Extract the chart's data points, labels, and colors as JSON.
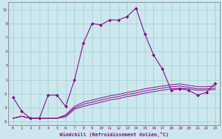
{
  "xlabel": "Windchill (Refroidissement éolien,°C)",
  "ylabel": "",
  "bg_color": "#cce8ee",
  "line_color": "#880088",
  "grid_color": "#99cccc",
  "xlim": [
    -0.5,
    23.5
  ],
  "ylim": [
    -5.5,
    12.0
  ],
  "yticks": [
    -5,
    -3,
    -1,
    1,
    3,
    5,
    7,
    9,
    11
  ],
  "xticks": [
    0,
    1,
    2,
    3,
    4,
    5,
    6,
    7,
    8,
    9,
    10,
    11,
    12,
    13,
    14,
    15,
    16,
    17,
    18,
    19,
    20,
    21,
    22,
    23
  ],
  "hours": [
    0,
    1,
    2,
    3,
    4,
    5,
    6,
    7,
    8,
    9,
    10,
    11,
    12,
    13,
    14,
    15,
    16,
    17,
    18,
    19,
    20,
    21,
    22,
    23
  ],
  "main_line": [
    -1.5,
    -3.5,
    -4.5,
    -4.5,
    -1.2,
    -1.2,
    -2.8,
    1.0,
    6.2,
    9.0,
    8.8,
    9.5,
    9.5,
    10.0,
    11.2,
    7.5,
    4.5,
    2.5,
    -0.5,
    -0.3,
    -0.5,
    -1.2,
    -0.8,
    0.5
  ],
  "line2": [
    -4.5,
    -4.2,
    -4.5,
    -4.5,
    -4.5,
    -4.5,
    -4.3,
    -3.2,
    -2.8,
    -2.5,
    -2.2,
    -1.9,
    -1.7,
    -1.4,
    -1.2,
    -0.9,
    -0.7,
    -0.5,
    -0.3,
    -0.2,
    -0.3,
    -0.5,
    -0.5,
    -0.4
  ],
  "line3": [
    -4.5,
    -4.2,
    -4.5,
    -4.5,
    -4.5,
    -4.5,
    -4.1,
    -3.0,
    -2.5,
    -2.2,
    -1.9,
    -1.6,
    -1.4,
    -1.1,
    -0.9,
    -0.6,
    -0.4,
    -0.2,
    -0.0,
    0.1,
    -0.1,
    -0.3,
    -0.3,
    -0.2
  ],
  "line4": [
    -4.5,
    -4.2,
    -4.5,
    -4.5,
    -4.5,
    -4.5,
    -4.0,
    -2.8,
    -2.2,
    -1.9,
    -1.6,
    -1.3,
    -1.1,
    -0.8,
    -0.6,
    -0.3,
    -0.1,
    0.1,
    0.3,
    0.4,
    0.2,
    0.0,
    0.0,
    0.1
  ]
}
